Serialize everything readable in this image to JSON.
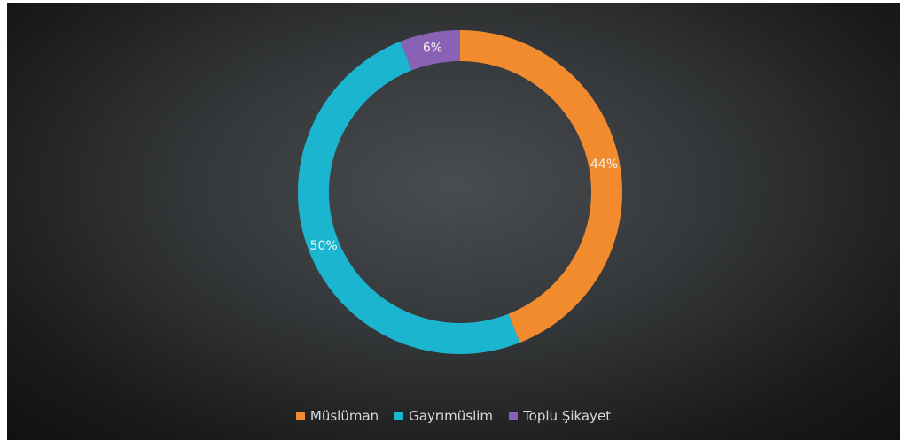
{
  "chart_data": {
    "type": "donut",
    "categories": [
      "Müslüman",
      "Gayrımüslim",
      "Toplu Şikayet"
    ],
    "values": [
      44,
      50,
      6
    ],
    "value_labels": [
      "44%",
      "50%",
      "6%"
    ],
    "colors": [
      "#f28a2e",
      "#1bb5cf",
      "#8a62b5"
    ],
    "legend": "bottom"
  }
}
